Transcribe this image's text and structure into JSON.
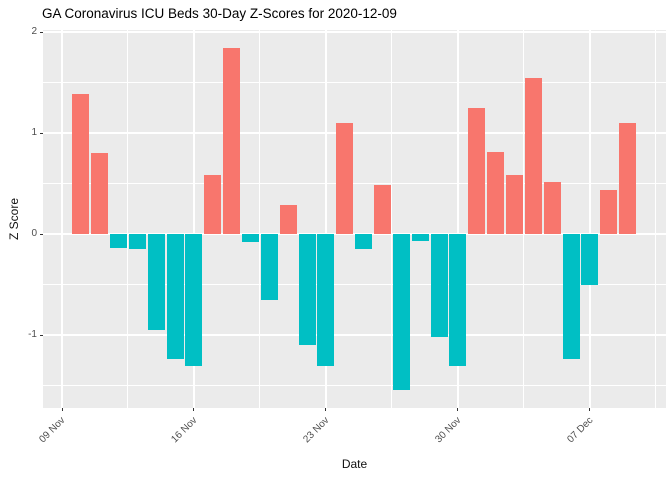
{
  "header": {
    "title": "GA Coronavirus ICU Beds 30-Day Z-Scores for 2020-12-09"
  },
  "axes": {
    "x": {
      "title": "Date",
      "tick_labels": [
        "09 Nov",
        "16 Nov",
        "23 Nov",
        "30 Nov",
        "07 Dec"
      ]
    },
    "y": {
      "title": "Z Score",
      "tick_labels": [
        "2",
        "1",
        "0",
        "-1"
      ]
    }
  },
  "colors": {
    "positive_bar": "#F8766D",
    "negative_bar": "#00BFC4",
    "panel_background": "#EBEBEB",
    "gridline": "#FFFFFF",
    "axis_text": "#4D4D4D"
  },
  "chart_data": {
    "type": "bar",
    "title": "GA Coronavirus ICU Beds 30-Day Z-Scores for 2020-12-09",
    "xlabel": "Date",
    "ylabel": "Z Score",
    "legend": "none",
    "grid": "white major and minor gridlines on grey panel",
    "bar_colors": {
      "positive": "#F8766D",
      "negative": "#00BFC4"
    },
    "y_axis": {
      "range": [
        -1.72,
        2.02
      ],
      "major_ticks": [
        {
          "value": 2,
          "label": "2"
        },
        {
          "value": 1,
          "label": "1"
        },
        {
          "value": 0,
          "label": "0"
        },
        {
          "value": -1,
          "label": "-1"
        }
      ],
      "minor_ticks": [
        1.5,
        0.5,
        -0.5,
        -1.5
      ]
    },
    "x_axis": {
      "ticks": [
        {
          "date": "2020-11-09",
          "label": "09 Nov"
        },
        {
          "date": "2020-11-16",
          "label": "16 Nov"
        },
        {
          "date": "2020-11-23",
          "label": "23 Nov"
        },
        {
          "date": "2020-11-30",
          "label": "30 Nov"
        },
        {
          "date": "2020-12-07",
          "label": "07 Dec"
        }
      ],
      "minor_tick_offset_days": 3.5
    },
    "points": [
      {
        "date": "2020-11-10",
        "value": 1.39
      },
      {
        "date": "2020-11-11",
        "value": 0.8
      },
      {
        "date": "2020-11-12",
        "value": -0.14
      },
      {
        "date": "2020-11-13",
        "value": -0.15
      },
      {
        "date": "2020-11-14",
        "value": -0.95
      },
      {
        "date": "2020-11-15",
        "value": -1.24
      },
      {
        "date": "2020-11-16",
        "value": -1.31
      },
      {
        "date": "2020-11-17",
        "value": 0.58
      },
      {
        "date": "2020-11-18",
        "value": 1.84
      },
      {
        "date": "2020-11-19",
        "value": -0.08
      },
      {
        "date": "2020-11-20",
        "value": -0.65
      },
      {
        "date": "2020-11-21",
        "value": 0.29
      },
      {
        "date": "2020-11-22",
        "value": -1.1
      },
      {
        "date": "2020-11-23",
        "value": -1.31
      },
      {
        "date": "2020-11-24",
        "value": 1.1
      },
      {
        "date": "2020-11-25",
        "value": -0.15
      },
      {
        "date": "2020-11-26",
        "value": 0.49
      },
      {
        "date": "2020-11-27",
        "value": -1.54
      },
      {
        "date": "2020-11-28",
        "value": -0.07
      },
      {
        "date": "2020-11-29",
        "value": -1.02
      },
      {
        "date": "2020-11-30",
        "value": -1.31
      },
      {
        "date": "2020-12-01",
        "value": 1.25
      },
      {
        "date": "2020-12-02",
        "value": 0.81
      },
      {
        "date": "2020-12-03",
        "value": 0.58
      },
      {
        "date": "2020-12-04",
        "value": 1.54
      },
      {
        "date": "2020-12-05",
        "value": 0.51
      },
      {
        "date": "2020-12-06",
        "value": -1.24
      },
      {
        "date": "2020-12-07",
        "value": -0.5
      },
      {
        "date": "2020-12-08",
        "value": 0.44
      },
      {
        "date": "2020-12-09",
        "value": 1.1
      }
    ]
  }
}
